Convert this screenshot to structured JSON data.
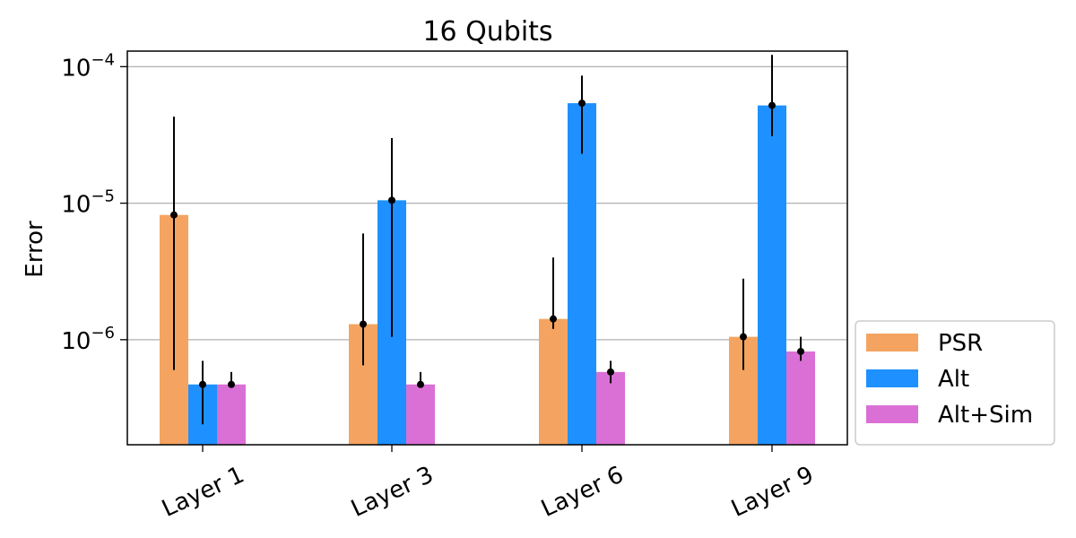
{
  "chart_data": {
    "type": "bar",
    "title": "16 Qubits",
    "xlabel": "",
    "ylabel": "Error",
    "yscale": "log",
    "ylim": [
      1.7e-07,
      0.00013
    ],
    "grid": "y-major",
    "legend_position": "outside-right",
    "categories": [
      "Layer 1",
      "Layer 3",
      "Layer 6",
      "Layer 9"
    ],
    "yticks": [
      {
        "value": 1e-06,
        "base": "10",
        "exp": "−6"
      },
      {
        "value": 1e-05,
        "base": "10",
        "exp": "−5"
      },
      {
        "value": 0.0001,
        "base": "10",
        "exp": "−4"
      }
    ],
    "series": [
      {
        "name": "PSR",
        "color": "#f4a460",
        "values": [
          8.2e-06,
          1.3e-06,
          1.42e-06,
          1.05e-06
        ],
        "err_low": [
          6e-07,
          6.5e-07,
          1.2e-06,
          6e-07
        ],
        "err_high": [
          4.3e-05,
          6e-06,
          4e-06,
          2.8e-06
        ]
      },
      {
        "name": "Alt",
        "color": "#1e90ff",
        "values": [
          4.7e-07,
          1.05e-05,
          5.4e-05,
          5.2e-05
        ],
        "err_low": [
          2.4e-07,
          1.05e-06,
          2.3e-05,
          3.1e-05
        ],
        "err_high": [
          7e-07,
          3e-05,
          8.6e-05,
          0.000122
        ]
      },
      {
        "name": "Alt+Sim",
        "color": "#da70d6",
        "values": [
          4.7e-07,
          4.7e-07,
          5.8e-07,
          8.2e-07
        ],
        "err_low": [
          4.7e-07,
          4.7e-07,
          4.8e-07,
          7e-07
        ],
        "err_high": [
          5.8e-07,
          5.8e-07,
          7e-07,
          1.05e-06
        ]
      }
    ]
  }
}
